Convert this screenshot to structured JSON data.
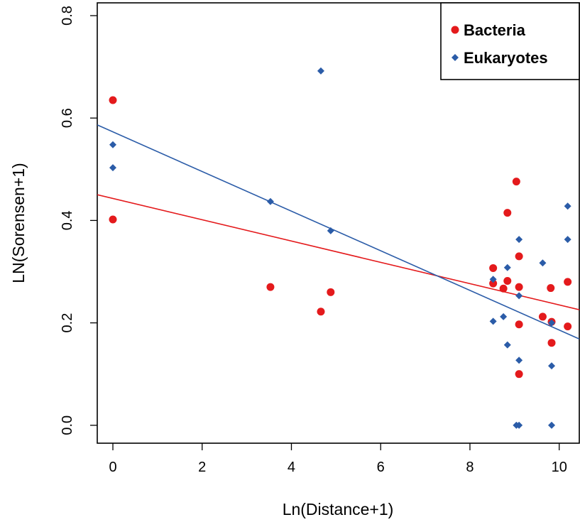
{
  "chart_data": {
    "type": "scatter",
    "xlabel": "Ln(Distance+1)",
    "ylabel": "LN(Sorensen+1)",
    "xlim": [
      -0.35,
      10.45
    ],
    "ylim": [
      -0.035,
      0.825
    ],
    "x_ticks": [
      0,
      2,
      4,
      6,
      8,
      10
    ],
    "y_ticks": [
      0.0,
      0.2,
      0.4,
      0.6,
      0.8
    ],
    "x_tick_labels": [
      "0",
      "2",
      "4",
      "6",
      "8",
      "10"
    ],
    "y_tick_labels": [
      "0.0",
      "0.2",
      "0.4",
      "0.6",
      "0.8"
    ],
    "legend_position": "top-right",
    "grid": false,
    "series": [
      {
        "name": "Bacteria",
        "color": "#e41a1c",
        "marker": "circle",
        "points": [
          {
            "x": 0,
            "y": 0.635
          },
          {
            "x": 0,
            "y": 0.402
          },
          {
            "x": 3.53,
            "y": 0.27
          },
          {
            "x": 4.66,
            "y": 0.222
          },
          {
            "x": 4.88,
            "y": 0.26
          },
          {
            "x": 8.52,
            "y": 0.307
          },
          {
            "x": 8.52,
            "y": 0.277
          },
          {
            "x": 8.75,
            "y": 0.267
          },
          {
            "x": 8.84,
            "y": 0.415
          },
          {
            "x": 8.84,
            "y": 0.282
          },
          {
            "x": 9.04,
            "y": 0.476
          },
          {
            "x": 9.1,
            "y": 0.33
          },
          {
            "x": 9.1,
            "y": 0.27
          },
          {
            "x": 9.1,
            "y": 0.197
          },
          {
            "x": 9.1,
            "y": 0.1
          },
          {
            "x": 9.63,
            "y": 0.212
          },
          {
            "x": 9.81,
            "y": 0.268
          },
          {
            "x": 9.83,
            "y": 0.202
          },
          {
            "x": 9.83,
            "y": 0.161
          },
          {
            "x": 10.19,
            "y": 0.28
          },
          {
            "x": 10.19,
            "y": 0.193
          }
        ],
        "fit": {
          "intercept": 0.443,
          "slope": -0.0208
        }
      },
      {
        "name": "Eukaryotes",
        "color": "#2b5ca8",
        "marker": "diamond",
        "points": [
          {
            "x": 0,
            "y": 0.548
          },
          {
            "x": 0,
            "y": 0.503
          },
          {
            "x": 3.53,
            "y": 0.437
          },
          {
            "x": 4.66,
            "y": 0.692
          },
          {
            "x": 4.88,
            "y": 0.38
          },
          {
            "x": 8.52,
            "y": 0.285
          },
          {
            "x": 8.52,
            "y": 0.203
          },
          {
            "x": 8.75,
            "y": 0.212
          },
          {
            "x": 8.84,
            "y": 0.308
          },
          {
            "x": 8.84,
            "y": 0.157
          },
          {
            "x": 9.04,
            "y": 0.0
          },
          {
            "x": 9.1,
            "y": 0.363
          },
          {
            "x": 9.1,
            "y": 0.253
          },
          {
            "x": 9.1,
            "y": 0.127
          },
          {
            "x": 9.1,
            "y": 0.0
          },
          {
            "x": 9.63,
            "y": 0.317
          },
          {
            "x": 9.83,
            "y": 0.2
          },
          {
            "x": 9.83,
            "y": 0.116
          },
          {
            "x": 9.83,
            "y": 0.0
          },
          {
            "x": 10.19,
            "y": 0.428
          },
          {
            "x": 10.19,
            "y": 0.363
          }
        ],
        "fit": {
          "intercept": 0.573,
          "slope": -0.0387
        }
      }
    ]
  }
}
